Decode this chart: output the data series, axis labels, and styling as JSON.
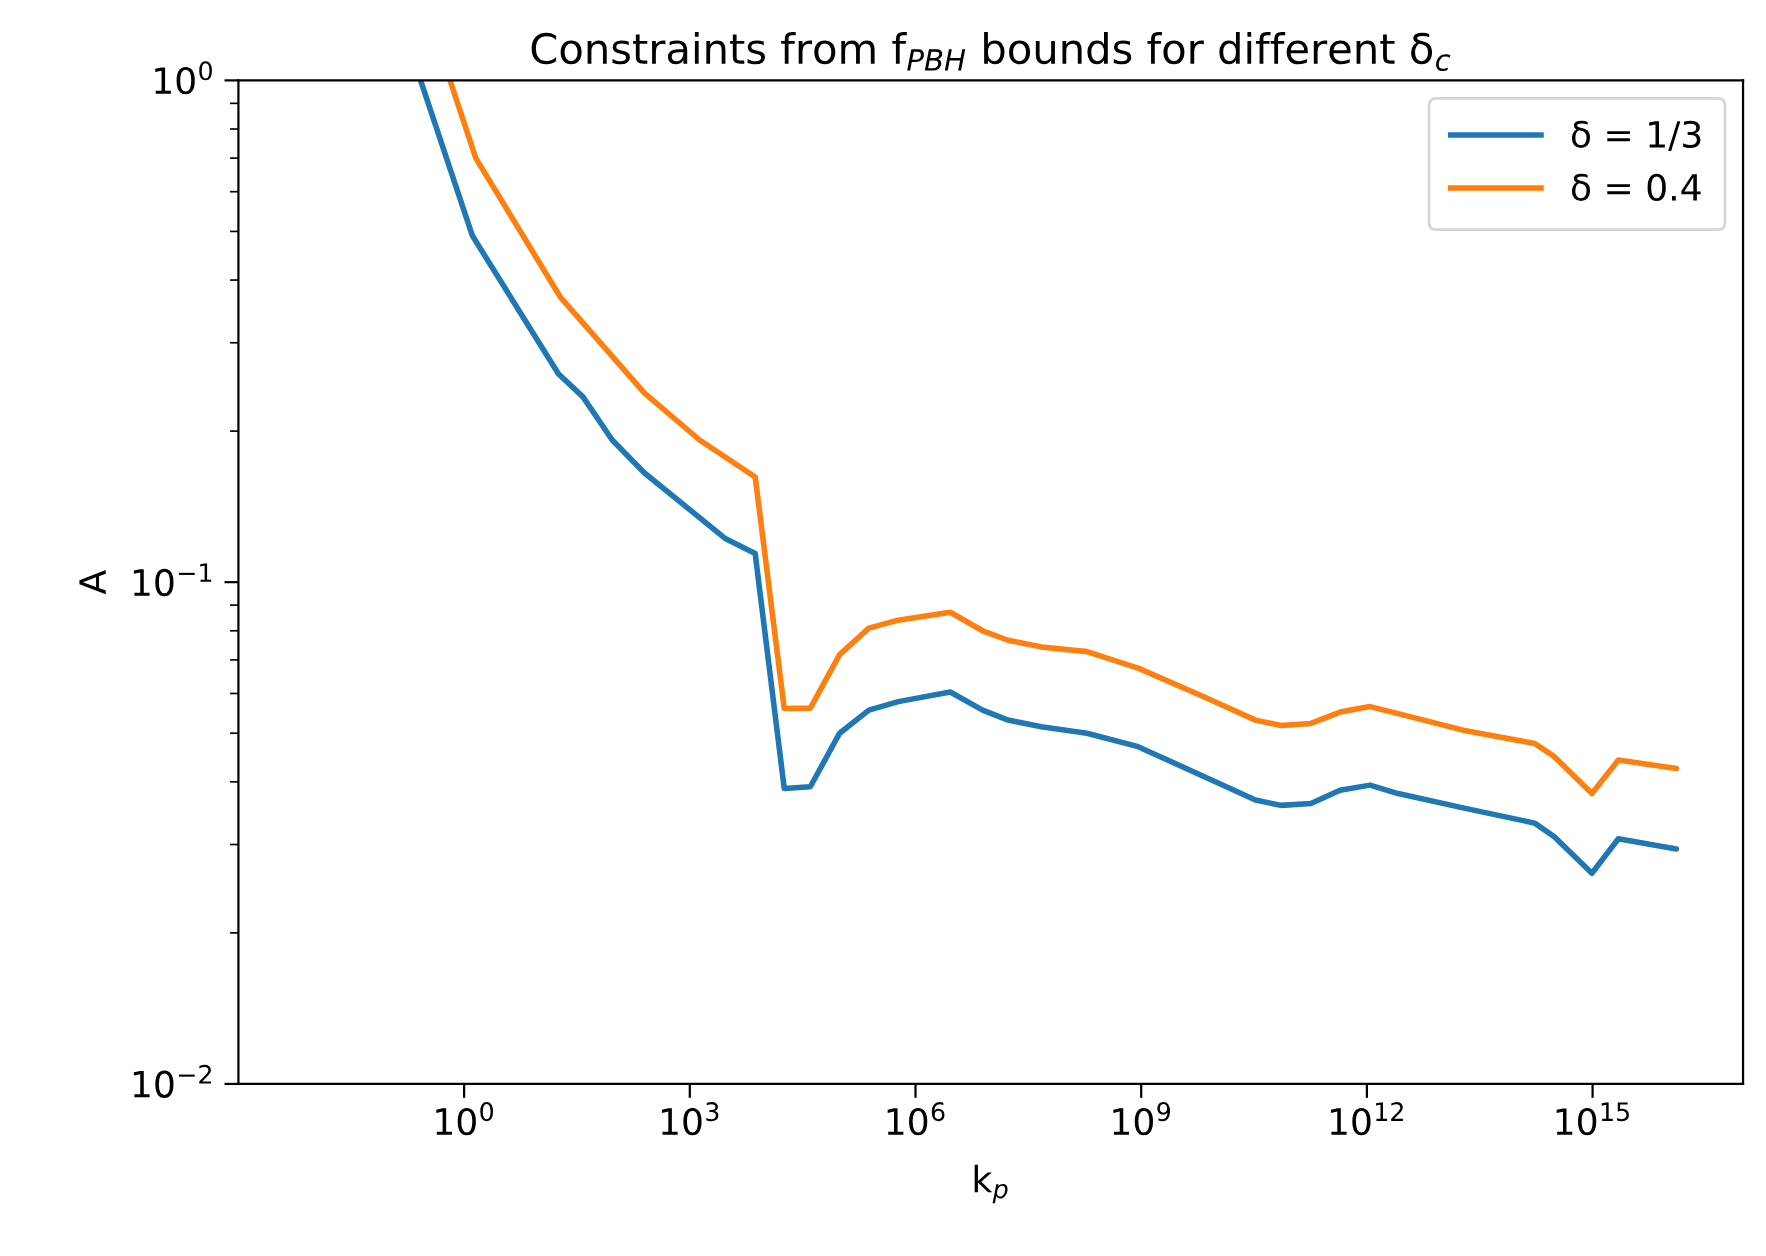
{
  "chart_data": {
    "type": "line",
    "title": "Constraints from f$_{PBH}$ bounds for different δ$_{c}$",
    "xlabel": "k$_{p}$",
    "ylabel": "A",
    "log": "xy",
    "grid": false,
    "legend": "top right",
    "xlim": [
      0.001,
      1e+17
    ],
    "ylim": [
      0.01,
      1
    ],
    "xticks": [
      {
        "value": 1,
        "label": "10$^{0}$"
      },
      {
        "value": 1000.0,
        "label": "10$^{3}$"
      },
      {
        "value": 1000000.0,
        "label": "10$^{6}$"
      },
      {
        "value": 1000000000.0,
        "label": "10$^{9}$"
      },
      {
        "value": 1000000000000.0,
        "label": "10$^{12}$"
      },
      {
        "value": 1000000000000000.0,
        "label": "10$^{15}$"
      }
    ],
    "yticks": [
      {
        "value": 0.01,
        "label": "10$^{−2}$"
      },
      {
        "value": 0.1,
        "label": "10$^{−1}$"
      },
      {
        "value": 1,
        "label": "10$^{0}$"
      },
      {
        "value": 0.02,
        "label": null
      },
      {
        "value": 0.03,
        "label": null
      },
      {
        "value": 0.04,
        "label": null
      },
      {
        "value": 0.05,
        "label": null
      },
      {
        "value": 0.06,
        "label": null
      },
      {
        "value": 0.07,
        "label": null
      },
      {
        "value": 0.08,
        "label": null
      },
      {
        "value": 0.09,
        "label": null
      },
      {
        "value": 0.2,
        "label": null
      },
      {
        "value": 0.3,
        "label": null
      },
      {
        "value": 0.4,
        "label": null
      },
      {
        "value": 0.5,
        "label": null
      },
      {
        "value": 0.6,
        "label": null
      },
      {
        "value": 0.7,
        "label": null
      },
      {
        "value": 0.8,
        "label": null
      },
      {
        "value": 0.9,
        "label": null
      }
    ],
    "series": [
      {
        "name": "δ = 1/3",
        "color": "#1f77b4",
        "x": [
          0.264,
          1.29,
          18,
          38,
          93,
          250,
          3000,
          7400,
          18000.0,
          40000.0,
          98000.0,
          240000.0,
          590000.0,
          2900000.0,
          7800000.0,
          17000000.0,
          47000000.0,
          190000000.0,
          910000000.0,
          6800000000.0,
          33000000000.0,
          72000000000.0,
          180000000000.0,
          440000000000.0,
          1100000000000.0,
          2600000000000.0,
          19000000000000.0,
          170000000000000.0,
          310000000000000.0,
          980000000000000.0,
          2200000000000000.0,
          1.3e+16
        ],
        "values": [
          1,
          0.49,
          0.26,
          0.234,
          0.192,
          0.165,
          0.122,
          0.114,
          0.0388,
          0.0391,
          0.05,
          0.0556,
          0.0578,
          0.0604,
          0.0556,
          0.0531,
          0.0515,
          0.05,
          0.047,
          0.041,
          0.0368,
          0.0359,
          0.0362,
          0.0385,
          0.0394,
          0.0379,
          0.0355,
          0.0331,
          0.0311,
          0.0263,
          0.0308,
          0.0294
        ]
      },
      {
        "name": "δ = 0.4",
        "color": "#ff7f0e",
        "x": [
          0.65,
          1.43,
          19,
          42,
          250,
          1350,
          7400,
          18000.0,
          40000.0,
          98000.0,
          240000.0,
          590000.0,
          2900000.0,
          7800000.0,
          17000000.0,
          47000000.0,
          190000000.0,
          910000000.0,
          6800000000.0,
          33000000000.0,
          72000000000.0,
          180000000000.0,
          440000000000.0,
          1100000000000.0,
          2600000000000.0,
          19000000000000.0,
          170000000000000.0,
          310000000000000.0,
          980000000000000.0,
          2200000000000000.0,
          1.3e+16
        ],
        "values": [
          1,
          0.7,
          0.37,
          0.323,
          0.238,
          0.192,
          0.162,
          0.056,
          0.0561,
          0.0717,
          0.081,
          0.084,
          0.0871,
          0.08,
          0.0766,
          0.0743,
          0.0727,
          0.0674,
          0.0591,
          0.0531,
          0.0518,
          0.0523,
          0.0551,
          0.0565,
          0.0547,
          0.0507,
          0.0477,
          0.0449,
          0.0379,
          0.0442,
          0.0425
        ]
      }
    ]
  }
}
